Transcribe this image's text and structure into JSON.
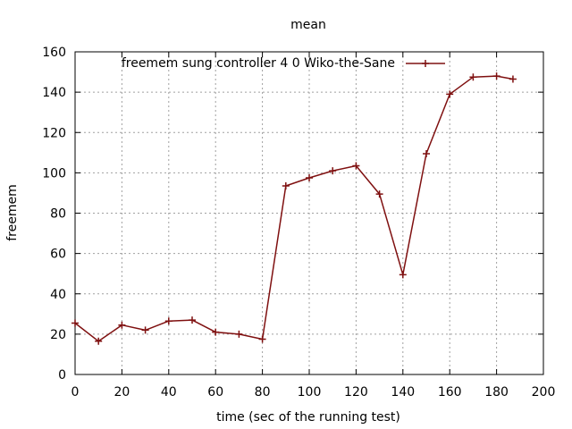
{
  "chart_data": {
    "type": "line",
    "title": "mean",
    "xlabel": "time (sec of the running test)",
    "ylabel": "freemem",
    "xlim": [
      0,
      200
    ],
    "ylim": [
      0,
      160
    ],
    "xticks": [
      0,
      20,
      40,
      60,
      80,
      100,
      120,
      140,
      160,
      180,
      200
    ],
    "yticks": [
      0,
      20,
      40,
      60,
      80,
      100,
      120,
      140,
      160
    ],
    "grid": true,
    "legend_position": "top",
    "series": [
      {
        "name": "freemem sung controller 4 0 Wiko-the-Sane",
        "color": "#7f1010",
        "marker": "plus",
        "x": [
          0,
          10,
          20,
          30,
          40,
          50,
          60,
          70,
          80,
          90,
          100,
          110,
          120,
          130,
          140,
          150,
          160,
          170,
          180,
          187
        ],
        "y": [
          25.5,
          16.5,
          24.5,
          22,
          26.5,
          27,
          21,
          20,
          17.5,
          93.5,
          97.5,
          101,
          103.5,
          89.5,
          49.5,
          109.5,
          139,
          147.5,
          148,
          146.5
        ]
      }
    ]
  }
}
